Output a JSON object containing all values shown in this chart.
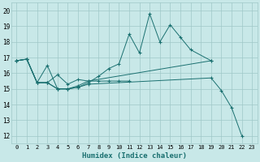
{
  "xlabel": "Humidex (Indice chaleur)",
  "bg_color": "#c8e8e8",
  "grid_color": "#9fc8c8",
  "line_color": "#1a7070",
  "xlim": [
    -0.5,
    23.5
  ],
  "ylim": [
    11.5,
    20.5
  ],
  "yticks": [
    12,
    13,
    14,
    15,
    16,
    17,
    18,
    19,
    20
  ],
  "xticks": [
    0,
    1,
    2,
    3,
    4,
    5,
    6,
    7,
    8,
    9,
    10,
    11,
    12,
    13,
    14,
    15,
    16,
    17,
    18,
    19,
    20,
    21,
    22,
    23
  ],
  "series": [
    {
      "x": [
        0,
        1,
        2,
        3,
        4,
        5,
        6,
        7,
        19,
        20,
        21,
        22
      ],
      "y": [
        16.8,
        16.9,
        15.4,
        16.5,
        15.0,
        15.0,
        15.1,
        15.3,
        15.7,
        14.9,
        13.8,
        12.0
      ]
    },
    {
      "x": [
        0,
        1,
        2,
        3,
        4,
        5,
        6,
        7,
        19
      ],
      "y": [
        16.8,
        16.9,
        15.4,
        15.4,
        15.9,
        15.3,
        15.6,
        15.5,
        16.8
      ]
    },
    {
      "x": [
        0,
        1,
        2,
        3,
        4,
        5,
        6,
        7,
        8,
        9,
        10,
        11
      ],
      "y": [
        16.8,
        16.9,
        15.4,
        15.4,
        15.0,
        15.0,
        15.2,
        15.5,
        15.5,
        15.5,
        15.5,
        15.5
      ]
    },
    {
      "x": [
        0,
        1,
        2,
        3,
        4,
        5,
        6,
        7,
        8,
        9,
        10,
        11,
        12,
        13,
        14,
        15,
        16,
        17,
        19
      ],
      "y": [
        16.8,
        16.9,
        15.4,
        15.4,
        15.0,
        15.0,
        15.1,
        15.4,
        15.8,
        16.3,
        16.6,
        18.5,
        17.3,
        19.8,
        18.0,
        19.1,
        18.3,
        17.5,
        16.8
      ]
    }
  ]
}
